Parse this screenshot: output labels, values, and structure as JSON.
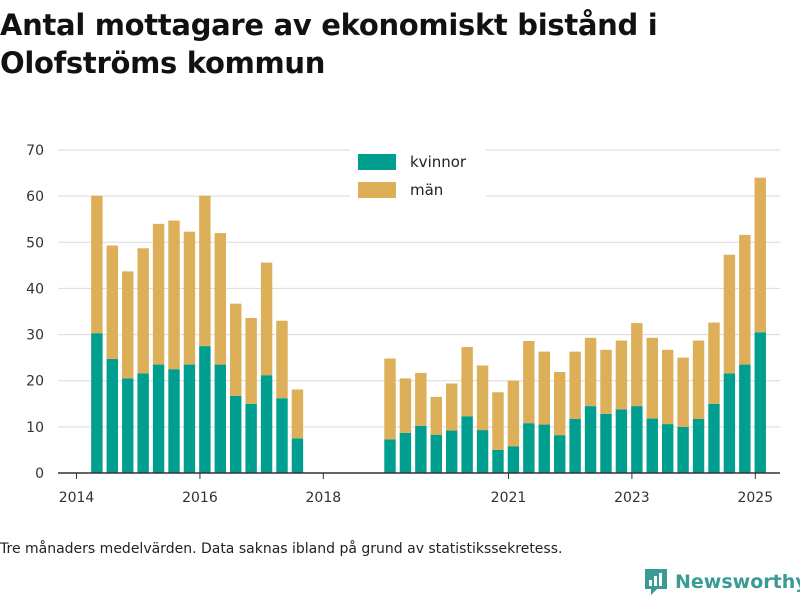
{
  "title": "Antal mottagare av ekonomiskt bistånd i Olofströms kommun",
  "footnote": "Tre månaders medelvärden. Data saknas ibland på grund av statistikssekretess.",
  "brand": {
    "name": "Newsworthy",
    "icon": "newsworthy-logo-icon"
  },
  "colors": {
    "kvinnor": "#009e8e",
    "man": "#dcaf58",
    "grid": "#d9d9d9",
    "axis": "#333333",
    "brand": "#3a9a94"
  },
  "chart_data": {
    "type": "bar",
    "stacked": true,
    "grid": "horizontal",
    "legend_position": "top-center",
    "ylim": [
      0,
      70
    ],
    "yticks": [
      0,
      10,
      20,
      30,
      40,
      50,
      60,
      70
    ],
    "xlim": [
      2013.7,
      2025.4
    ],
    "xticks": [
      {
        "value": 2014,
        "label": "2014"
      },
      {
        "value": 2016,
        "label": "2016"
      },
      {
        "value": 2018,
        "label": "2018"
      },
      {
        "value": 2021,
        "label": "2021"
      },
      {
        "value": 2023,
        "label": "2023"
      },
      {
        "value": 2025,
        "label": "2025"
      }
    ],
    "series": [
      {
        "name": "kvinnor",
        "color": "#009e8e"
      },
      {
        "name": "män",
        "color": "#dcaf58"
      }
    ],
    "x": [
      2014.33,
      2014.58,
      2014.83,
      2015.08,
      2015.33,
      2015.58,
      2015.83,
      2016.08,
      2016.33,
      2016.58,
      2016.83,
      2017.08,
      2017.33,
      2017.58,
      2019.08,
      2019.33,
      2019.58,
      2019.83,
      2020.08,
      2020.33,
      2020.58,
      2020.83,
      2021.08,
      2021.33,
      2021.58,
      2021.83,
      2022.08,
      2022.33,
      2022.58,
      2022.83,
      2023.08,
      2023.33,
      2023.58,
      2023.83,
      2024.08,
      2024.33,
      2024.58,
      2024.83,
      2025.08
    ],
    "values": {
      "kvinnor": [
        30.3,
        24.7,
        20.5,
        21.6,
        23.5,
        22.5,
        23.5,
        27.5,
        23.5,
        16.7,
        15,
        21.2,
        16.2,
        7.5,
        7.3,
        8.7,
        10.2,
        8.3,
        9.2,
        12.3,
        9.3,
        5,
        5.8,
        10.8,
        10.5,
        8.2,
        11.7,
        14.5,
        12.8,
        13.8,
        14.5,
        11.8,
        10.6,
        10,
        11.7,
        15,
        21.6,
        23.5,
        30.5
      ],
      "man": [
        29.8,
        24.6,
        23.2,
        27.1,
        30.5,
        32.2,
        28.8,
        32.6,
        28.5,
        20,
        18.6,
        24.4,
        16.8,
        10.6,
        17.5,
        11.8,
        11.5,
        8.2,
        10.2,
        15,
        14,
        12.5,
        14.2,
        17.8,
        15.8,
        13.7,
        14.6,
        14.8,
        13.9,
        14.9,
        18,
        17.5,
        16.1,
        15,
        17,
        17.6,
        25.7,
        28.1,
        33.5
      ]
    }
  }
}
